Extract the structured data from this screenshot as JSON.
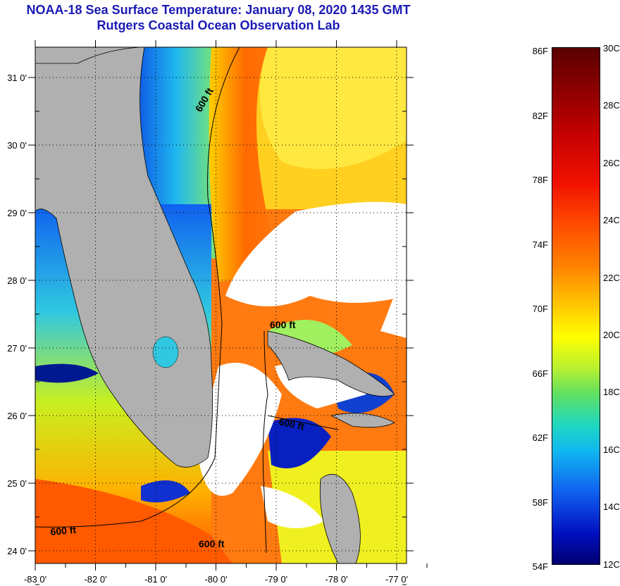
{
  "title": {
    "line1": "NOAA-18 Sea Surface Temperature:  January 08, 2020 1435 GMT",
    "line2": "Rutgers Coastal Ocean Observation Lab"
  },
  "map": {
    "lat_labels": [
      "31 0'",
      "30 0'",
      "29 0'",
      "28 0'",
      "27 0'",
      "26 0'",
      "25 0'",
      "24 0'"
    ],
    "lon_labels": [
      "-83 0'",
      "-82 0'",
      "-81 0'",
      "-80 0'",
      "-79 0'",
      "-78 0'",
      "-77 0'"
    ],
    "contour_labels": [
      "600 ft",
      "600 ft",
      "600 ft",
      "600 ft",
      "600 ft"
    ],
    "land_color": "#b0b0b0",
    "cloud_color": "#ffffff"
  },
  "colorbar": {
    "fahrenheit": [
      "86F",
      "82F",
      "78F",
      "74F",
      "70F",
      "66F",
      "62F",
      "58F",
      "54F"
    ],
    "celsius": [
      "30C",
      "28C",
      "26C",
      "24C",
      "22C",
      "20C",
      "18C",
      "16C",
      "14C",
      "12C"
    ]
  }
}
